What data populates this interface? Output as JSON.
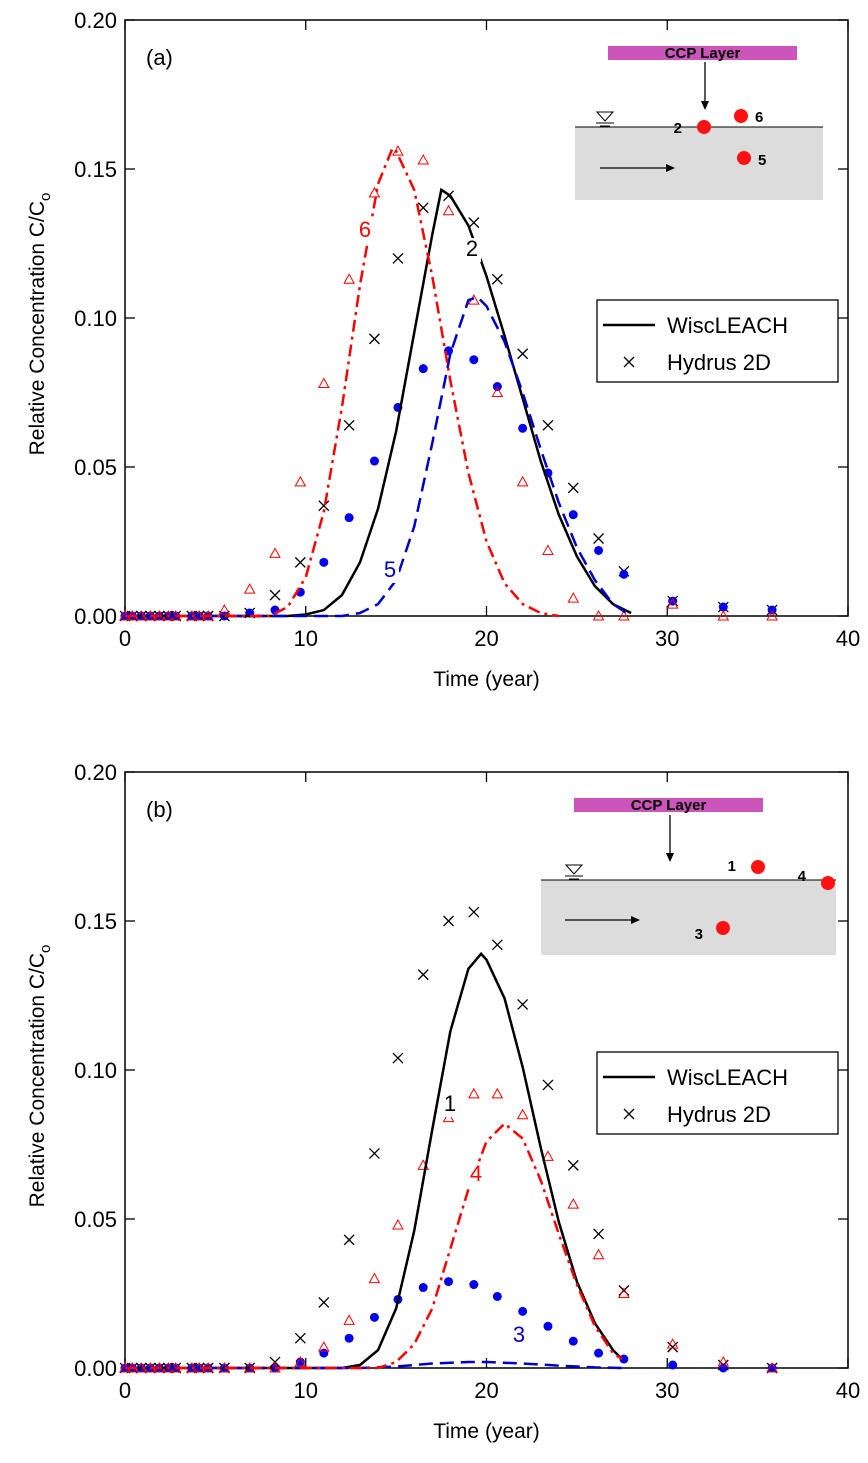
{
  "chart_data": [
    {
      "type": "line",
      "panel_label": "(a)",
      "xlabel": "Time (year)",
      "ylabel": "Relative Concentration C/C",
      "ylabel_subscript": "o",
      "xlim": [
        0,
        40
      ],
      "ylim": [
        0,
        0.2
      ],
      "xticks": [
        0,
        10,
        20,
        30,
        40
      ],
      "yticks": [
        {
          "value": 0,
          "label": "0.00"
        },
        {
          "value": 0.05,
          "label": "0.05"
        },
        {
          "value": 0.1,
          "label": "0.10"
        },
        {
          "value": 0.15,
          "label": "0.15"
        },
        {
          "value": 0.2,
          "label": "0.20"
        }
      ],
      "legend": {
        "position": "right",
        "labels": [
          "WiscLEACH",
          "Hydrus 2D"
        ]
      },
      "series": [
        {
          "name": "2",
          "color": "#000000",
          "dash": "solid",
          "x": [
            0,
            8,
            9,
            10,
            11,
            12,
            13,
            14,
            15,
            16,
            17,
            17.5,
            18,
            19,
            20,
            21,
            22,
            23,
            24,
            25,
            26,
            27,
            28
          ],
          "values": [
            0,
            0,
            0,
            0.0005,
            0.002,
            0.007,
            0.018,
            0.036,
            0.062,
            0.095,
            0.128,
            0.143,
            0.141,
            0.131,
            0.114,
            0.094,
            0.073,
            0.052,
            0.034,
            0.02,
            0.01,
            0.004,
            0.001
          ]
        },
        {
          "name": "5",
          "color": "#0000cc",
          "dash": "dash",
          "x": [
            0,
            12,
            13,
            14,
            15,
            16,
            17,
            18,
            19,
            19.5,
            20,
            21,
            22,
            23,
            24,
            25,
            26,
            27,
            28
          ],
          "values": [
            0,
            0,
            0.001,
            0.004,
            0.012,
            0.03,
            0.058,
            0.088,
            0.106,
            0.107,
            0.104,
            0.092,
            0.075,
            0.056,
            0.038,
            0.023,
            0.012,
            0.004,
            0
          ]
        },
        {
          "name": "6",
          "color": "#ff0000",
          "dash": "dashdot",
          "x": [
            0,
            8,
            9,
            10,
            11,
            12,
            13,
            14,
            14.8,
            15,
            16,
            17,
            18,
            19,
            20,
            21,
            22,
            23,
            24
          ],
          "values": [
            0,
            0,
            0.003,
            0.013,
            0.035,
            0.07,
            0.111,
            0.145,
            0.157,
            0.156,
            0.143,
            0.114,
            0.079,
            0.048,
            0.025,
            0.011,
            0.004,
            0.001,
            0
          ]
        }
      ],
      "points": [
        {
          "marker": "x",
          "color": "#000000",
          "x": [
            0,
            0.4,
            0.9,
            1.4,
            1.9,
            2.4,
            2.8,
            3.7,
            4.1,
            4.6,
            5.5,
            6.9,
            8.3,
            9.7,
            11.0,
            12.4,
            13.8,
            15.1,
            16.5,
            17.9,
            19.3,
            20.6,
            22.0,
            23.4,
            24.8,
            26.2,
            27.6,
            30.3,
            33.1,
            35.8
          ],
          "values": [
            0,
            0,
            0,
            0,
            0,
            0,
            0,
            0,
            0,
            0,
            0,
            0.001,
            0.007,
            0.018,
            0.037,
            0.064,
            0.093,
            0.12,
            0.137,
            0.141,
            0.132,
            0.113,
            0.088,
            0.064,
            0.043,
            0.026,
            0.015,
            0.005,
            0.003,
            0.002
          ]
        },
        {
          "marker": "dot",
          "color": "#0000ee",
          "x": [
            0,
            0.4,
            0.9,
            1.4,
            1.9,
            2.4,
            2.8,
            3.7,
            4.1,
            4.6,
            5.5,
            6.9,
            8.3,
            9.7,
            11.0,
            12.4,
            13.8,
            15.1,
            16.5,
            17.9,
            19.3,
            20.6,
            22.0,
            23.4,
            24.8,
            26.2,
            27.6,
            30.3,
            33.1,
            35.8
          ],
          "values": [
            0,
            0,
            0,
            0,
            0,
            0,
            0,
            0,
            0,
            0,
            0,
            0.001,
            0.002,
            0.008,
            0.018,
            0.033,
            0.052,
            0.07,
            0.083,
            0.089,
            0.086,
            0.077,
            0.063,
            0.048,
            0.034,
            0.022,
            0.014,
            0.005,
            0.003,
            0.002
          ]
        },
        {
          "marker": "triangle",
          "color": "#ff0000",
          "x": [
            0,
            0.4,
            0.9,
            1.4,
            1.9,
            2.4,
            2.8,
            3.7,
            4.1,
            4.6,
            5.5,
            6.9,
            8.3,
            9.7,
            11.0,
            12.4,
            13.8,
            15.1,
            16.5,
            17.9,
            19.3,
            20.6,
            22.0,
            23.4,
            24.8,
            26.2,
            27.6,
            30.3,
            33.1,
            35.8
          ],
          "values": [
            0,
            0,
            0,
            0,
            0,
            0,
            0,
            0,
            0,
            0,
            0.002,
            0.009,
            0.021,
            0.045,
            0.078,
            0.113,
            0.142,
            0.156,
            0.153,
            0.136,
            0.106,
            0.075,
            0.045,
            0.022,
            0.006,
            0,
            0,
            0.004,
            0,
            0
          ]
        }
      ],
      "inset": {
        "label": "CCP Layer",
        "wells": [
          "2",
          "6",
          "5"
        ]
      }
    },
    {
      "type": "line",
      "panel_label": "(b)",
      "xlabel": "Time (year)",
      "ylabel": "Relative Concentration C/C",
      "ylabel_subscript": "o",
      "xlim": [
        0,
        40
      ],
      "ylim": [
        0,
        0.2
      ],
      "xticks": [
        0,
        10,
        20,
        30,
        40
      ],
      "yticks": [
        {
          "value": 0,
          "label": "0.00"
        },
        {
          "value": 0.05,
          "label": "0.05"
        },
        {
          "value": 0.1,
          "label": "0.10"
        },
        {
          "value": 0.15,
          "label": "0.15"
        },
        {
          "value": 0.2,
          "label": "0.20"
        }
      ],
      "legend": {
        "position": "right",
        "labels": [
          "WiscLEACH",
          "Hydrus 2D"
        ]
      },
      "series": [
        {
          "name": "1",
          "color": "#000000",
          "dash": "solid",
          "x": [
            0,
            12,
            13,
            14,
            15,
            16,
            17,
            18,
            19,
            19.7,
            20,
            21,
            22,
            23,
            24,
            25,
            26,
            27,
            27.5
          ],
          "values": [
            0,
            0,
            0.001,
            0.006,
            0.02,
            0.046,
            0.08,
            0.113,
            0.134,
            0.139,
            0.137,
            0.124,
            0.101,
            0.074,
            0.049,
            0.029,
            0.015,
            0.006,
            0.003
          ]
        },
        {
          "name": "3",
          "color": "#0000cc",
          "dash": "dash",
          "x": [
            0,
            13,
            15,
            17,
            19,
            20,
            22,
            24,
            26,
            27.5
          ],
          "values": [
            0,
            0,
            0.0005,
            0.0015,
            0.002,
            0.002,
            0.0015,
            0.0008,
            0.0002,
            0
          ]
        },
        {
          "name": "4",
          "color": "#ff0000",
          "dash": "dashdot",
          "x": [
            0,
            14,
            15,
            16,
            17,
            18,
            19,
            20,
            21,
            22,
            23,
            24,
            25,
            26,
            27,
            27.5
          ],
          "values": [
            0,
            0,
            0.002,
            0.008,
            0.02,
            0.04,
            0.06,
            0.076,
            0.082,
            0.077,
            0.063,
            0.045,
            0.028,
            0.014,
            0.005,
            0.003
          ]
        }
      ],
      "points": [
        {
          "marker": "x",
          "color": "#000000",
          "x": [
            0,
            0.4,
            0.9,
            1.4,
            1.9,
            2.4,
            2.8,
            3.7,
            4.1,
            4.6,
            5.5,
            6.9,
            8.3,
            9.7,
            11.0,
            12.4,
            13.8,
            15.1,
            16.5,
            17.9,
            19.3,
            20.6,
            22.0,
            23.4,
            24.8,
            26.2,
            27.6,
            30.3,
            33.1,
            35.8
          ],
          "values": [
            0,
            0,
            0,
            0,
            0,
            0,
            0,
            0,
            0,
            0,
            0,
            0,
            0.002,
            0.01,
            0.022,
            0.043,
            0.072,
            0.104,
            0.132,
            0.15,
            0.153,
            0.142,
            0.122,
            0.095,
            0.068,
            0.045,
            0.026,
            0.007,
            0.001,
            0
          ]
        },
        {
          "marker": "dot",
          "color": "#0000ee",
          "x": [
            0,
            0.4,
            0.9,
            1.4,
            1.9,
            2.4,
            2.8,
            3.7,
            4.1,
            4.6,
            5.5,
            6.9,
            8.3,
            9.7,
            11.0,
            12.4,
            13.8,
            15.1,
            16.5,
            17.9,
            19.3,
            20.6,
            22.0,
            23.4,
            24.8,
            26.2,
            27.6,
            30.3,
            33.1,
            35.8
          ],
          "values": [
            0,
            0,
            0,
            0,
            0,
            0,
            0,
            0,
            0,
            0,
            0,
            0,
            0,
            0.002,
            0.005,
            0.01,
            0.017,
            0.023,
            0.027,
            0.029,
            0.028,
            0.024,
            0.019,
            0.014,
            0.009,
            0.005,
            0.003,
            0.001,
            0,
            0
          ]
        },
        {
          "marker": "triangle",
          "color": "#ff0000",
          "x": [
            0,
            0.4,
            0.9,
            1.4,
            1.9,
            2.4,
            2.8,
            3.7,
            4.1,
            4.6,
            5.5,
            6.9,
            8.3,
            9.7,
            11.0,
            12.4,
            13.8,
            15.1,
            16.5,
            17.9,
            19.3,
            20.6,
            22.0,
            23.4,
            24.8,
            26.2,
            27.6,
            30.3,
            33.1,
            35.8
          ],
          "values": [
            0,
            0,
            0,
            0,
            0,
            0,
            0,
            0,
            0,
            0,
            0,
            0,
            0,
            0.002,
            0.007,
            0.016,
            0.03,
            0.048,
            0.068,
            0.084,
            0.092,
            0.092,
            0.085,
            0.071,
            0.055,
            0.038,
            0.025,
            0.008,
            0.002,
            0
          ]
        }
      ],
      "inset": {
        "label": "CCP Layer",
        "wells": [
          "1",
          "4",
          "3"
        ]
      }
    }
  ]
}
